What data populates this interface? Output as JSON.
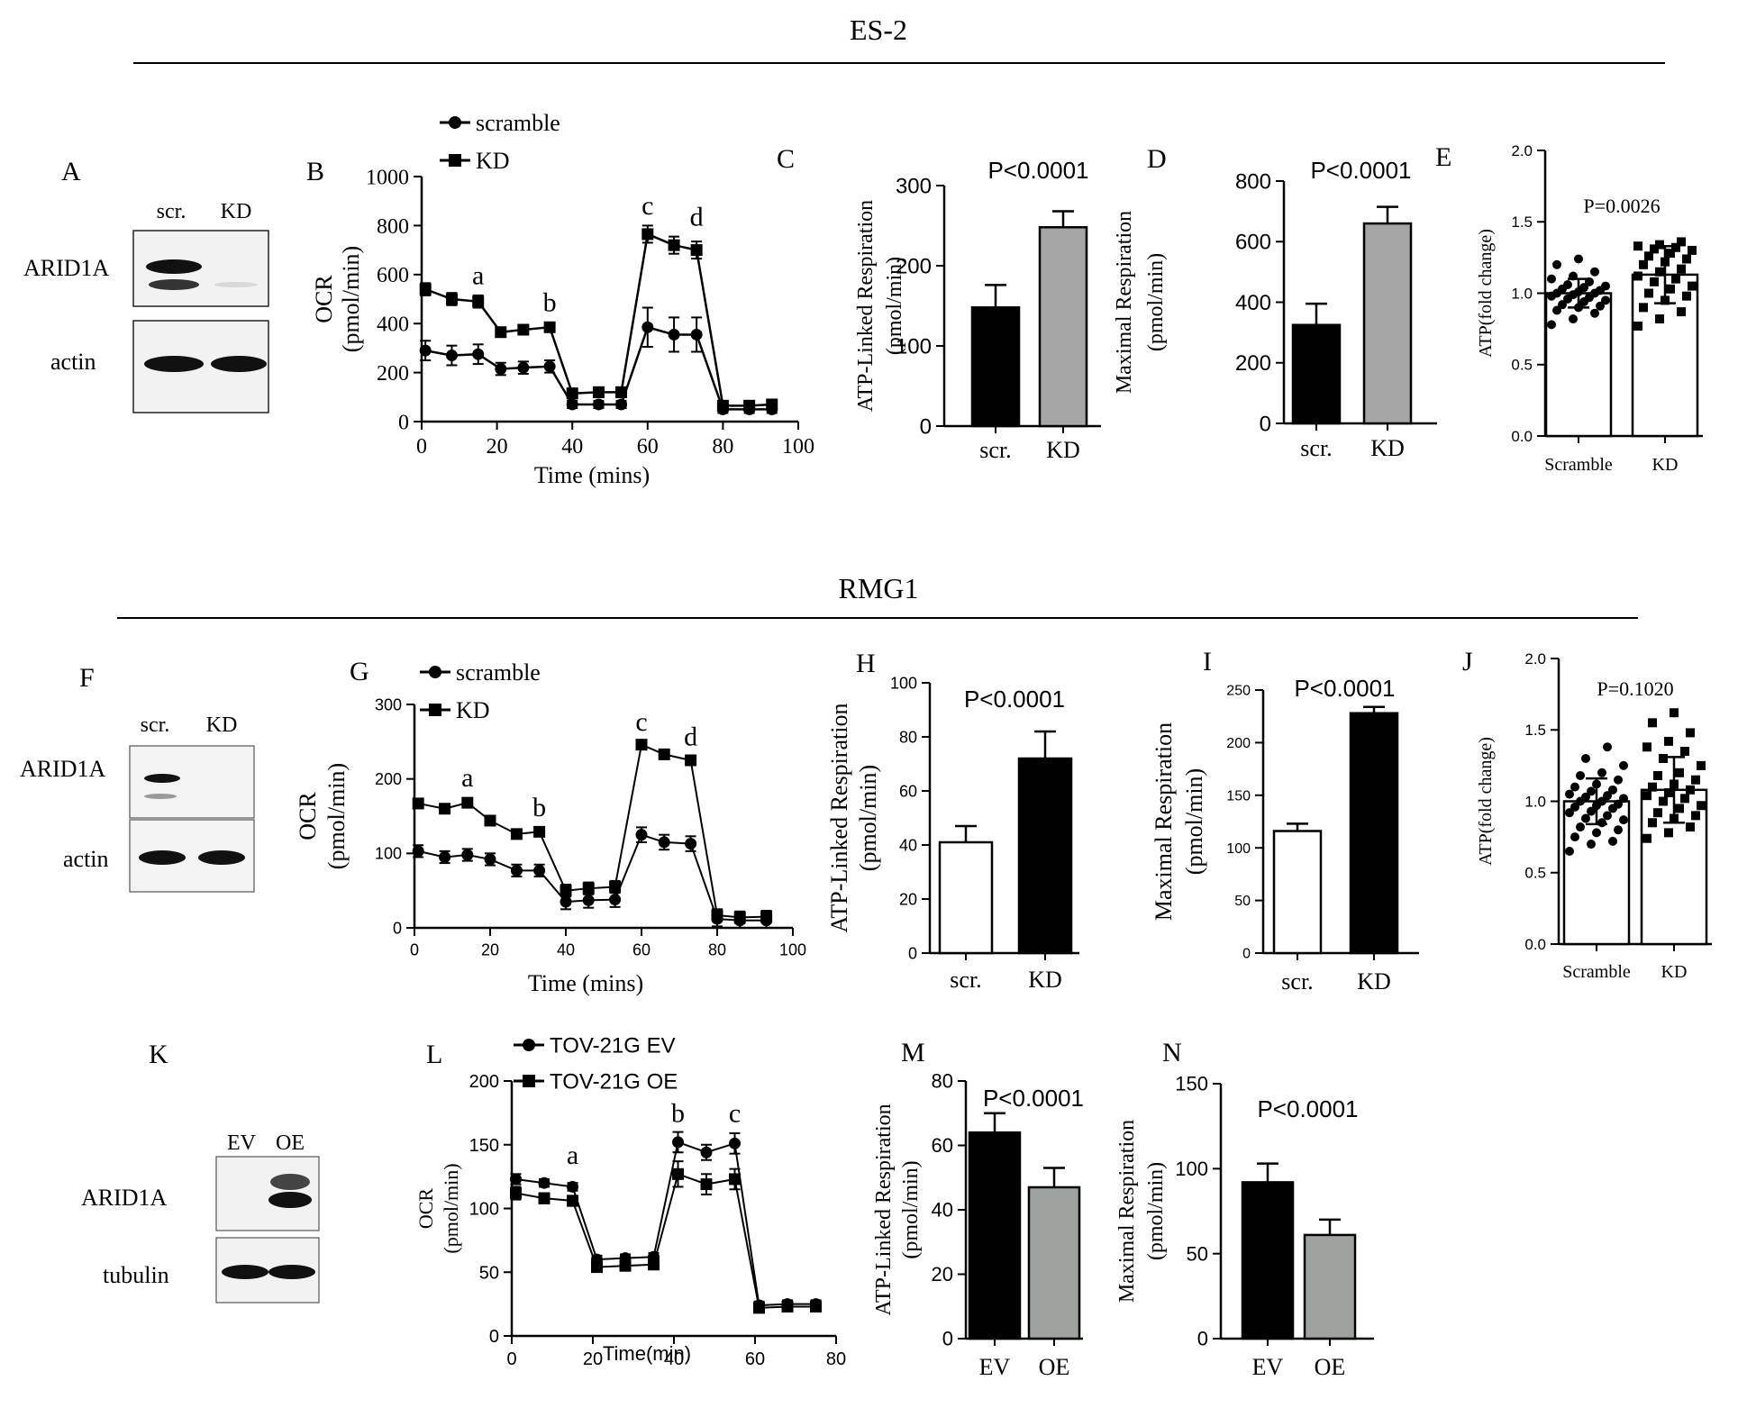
{
  "sections": {
    "es2": "ES-2",
    "rmg1": "RMG1"
  },
  "panel_letters": [
    "A",
    "B",
    "C",
    "D",
    "E",
    "F",
    "G",
    "H",
    "I",
    "J",
    "K",
    "L",
    "M",
    "N"
  ],
  "blots": {
    "A": {
      "lanes": [
        "scr.",
        "KD"
      ],
      "rows": [
        "ARID1A",
        "actin"
      ]
    },
    "F": {
      "lanes": [
        "scr.",
        "KD"
      ],
      "rows": [
        "ARID1A",
        "actin"
      ]
    },
    "K": {
      "lanes": [
        "EV",
        "OE"
      ],
      "rows": [
        "ARID1A",
        "tubulin"
      ]
    }
  },
  "colors": {
    "black": "#000000",
    "gray_bar": "#a6a6a6",
    "gray_bar2": "#9fa3a0",
    "white_bar": "#ffffff"
  },
  "chart_data": [
    {
      "id": "B",
      "type": "line",
      "title": "",
      "xlabel": "Time (mins)",
      "ylabel_line1": "OCR",
      "ylabel_line2": "(pmol/min)",
      "xlim": [
        0,
        100
      ],
      "ylim": [
        0,
        1000
      ],
      "xticks": [
        0,
        20,
        40,
        60,
        80,
        100
      ],
      "yticks": [
        0,
        200,
        400,
        600,
        800,
        1000
      ],
      "series": [
        {
          "name": "scramble",
          "marker": "circle",
          "x": [
            1,
            8,
            15,
            21,
            27,
            34,
            40,
            47,
            53,
            60,
            67,
            73,
            80,
            87,
            93
          ],
          "y": [
            290,
            270,
            275,
            215,
            220,
            225,
            70,
            70,
            70,
            385,
            355,
            355,
            50,
            50,
            50
          ],
          "err": [
            40,
            40,
            40,
            25,
            25,
            25,
            15,
            15,
            15,
            80,
            70,
            70,
            15,
            15,
            15
          ]
        },
        {
          "name": "KD",
          "marker": "square",
          "x": [
            1,
            8,
            15,
            21,
            27,
            34,
            40,
            47,
            53,
            60,
            67,
            73,
            80,
            87,
            93
          ],
          "y": [
            540,
            500,
            490,
            365,
            375,
            385,
            115,
            120,
            120,
            765,
            720,
            700,
            65,
            65,
            70
          ],
          "err": [
            25,
            25,
            25,
            15,
            15,
            15,
            20,
            20,
            20,
            35,
            35,
            35,
            15,
            15,
            15
          ]
        }
      ],
      "annotations": [
        {
          "text": "a",
          "x": 15,
          "y": 560
        },
        {
          "text": "b",
          "x": 34,
          "y": 450
        },
        {
          "text": "c",
          "x": 60,
          "y": 845
        },
        {
          "text": "d",
          "x": 73,
          "y": 800
        }
      ]
    },
    {
      "id": "C",
      "type": "bar",
      "ylabel_line1": "ATP-Linked Respiration",
      "ylabel_line2": "(pmol/min)",
      "pvalue": "P<0.0001",
      "categories": [
        "scr.",
        "KD"
      ],
      "values": [
        148,
        248
      ],
      "err": [
        28,
        20
      ],
      "fills": [
        "#000000",
        "#a6a6a6"
      ],
      "ylim": [
        0,
        300
      ],
      "yticks": [
        0,
        100,
        200,
        300
      ]
    },
    {
      "id": "D",
      "type": "bar",
      "ylabel_line1": "Maximal Respiration",
      "ylabel_line2": "(pmol/min)",
      "pvalue": "P<0.0001",
      "categories": [
        "scr.",
        "KD"
      ],
      "values": [
        325,
        660
      ],
      "err": [
        70,
        55
      ],
      "fills": [
        "#000000",
        "#a6a6a6"
      ],
      "ylim": [
        0,
        800
      ],
      "yticks": [
        0,
        200,
        400,
        600,
        800
      ]
    },
    {
      "id": "E",
      "type": "bar",
      "ylabel_line1": "ATP(fold change)",
      "pvalue": "P=0.0026",
      "categories": [
        "Scramble",
        "KD"
      ],
      "values": [
        1.0,
        1.13
      ],
      "err": [
        0.1,
        0.2
      ],
      "fills": [
        "#ffffff",
        "#ffffff"
      ],
      "ylim": [
        0,
        2.0
      ],
      "yticks": [
        "0.0",
        "0.5",
        "1.0",
        "1.5",
        "2.0"
      ],
      "points": [
        [
          0.78,
          0.82,
          0.86,
          0.88,
          0.9,
          0.91,
          0.92,
          0.94,
          0.95,
          0.96,
          0.97,
          0.98,
          0.99,
          1.0,
          1.0,
          1.01,
          1.02,
          1.03,
          1.04,
          1.05,
          1.06,
          1.08,
          1.1,
          1.12,
          1.15,
          1.2,
          1.24
        ],
        [
          0.77,
          0.82,
          0.87,
          0.9,
          0.95,
          0.98,
          1.0,
          1.03,
          1.05,
          1.08,
          1.1,
          1.12,
          1.15,
          1.17,
          1.2,
          1.22,
          1.24,
          1.26,
          1.28,
          1.3,
          1.31,
          1.32,
          1.33,
          1.34,
          1.36
        ]
      ]
    },
    {
      "id": "G",
      "type": "line",
      "xlabel": "Time (mins)",
      "ylabel_line1": "OCR",
      "ylabel_line2": "(pmol/min)",
      "xlim": [
        0,
        100
      ],
      "ylim": [
        0,
        300
      ],
      "xticks": [
        0,
        20,
        40,
        60,
        80,
        100
      ],
      "yticks": [
        0,
        100,
        200,
        300
      ],
      "series": [
        {
          "name": "scramble",
          "marker": "circle",
          "x": [
            1,
            8,
            14,
            20,
            27,
            33,
            40,
            46,
            53,
            60,
            66,
            73,
            80,
            86,
            93
          ],
          "y": [
            103,
            95,
            98,
            92,
            77,
            77,
            35,
            37,
            38,
            125,
            115,
            113,
            12,
            10,
            10
          ],
          "err": [
            8,
            8,
            8,
            8,
            8,
            8,
            10,
            10,
            10,
            10,
            10,
            10,
            10,
            10,
            10
          ]
        },
        {
          "name": "KD",
          "marker": "square",
          "x": [
            1,
            8,
            14,
            20,
            27,
            33,
            40,
            46,
            53,
            60,
            66,
            73,
            80,
            86,
            93
          ],
          "y": [
            167,
            160,
            168,
            144,
            126,
            129,
            50,
            53,
            55,
            246,
            233,
            225,
            17,
            14,
            15
          ],
          "err": [
            4,
            4,
            5,
            4,
            3,
            3,
            8,
            8,
            8,
            6,
            5,
            4,
            8,
            8,
            8
          ]
        }
      ],
      "annotations": [
        {
          "text": "a",
          "x": 14,
          "y": 190
        },
        {
          "text": "b",
          "x": 33,
          "y": 150
        },
        {
          "text": "c",
          "x": 60,
          "y": 265
        },
        {
          "text": "d",
          "x": 73,
          "y": 245
        }
      ]
    },
    {
      "id": "H",
      "type": "bar",
      "ylabel_line1": "ATP-Linked Respiration",
      "ylabel_line2": "(pmol/min)",
      "pvalue": "P<0.0001",
      "categories": [
        "scr.",
        "KD"
      ],
      "values": [
        41,
        72
      ],
      "err": [
        6,
        10
      ],
      "fills": [
        "#ffffff",
        "#000000"
      ],
      "ylim": [
        0,
        100
      ],
      "yticks": [
        0,
        20,
        40,
        60,
        80,
        100
      ]
    },
    {
      "id": "I",
      "type": "bar",
      "ylabel_line1": "Maximal Respiration",
      "ylabel_line2": "(pmol/min)",
      "pvalue": "P<0.0001",
      "categories": [
        "scr.",
        "KD"
      ],
      "values": [
        116,
        228
      ],
      "err": [
        7,
        6
      ],
      "fills": [
        "#ffffff",
        "#000000"
      ],
      "ylim": [
        0,
        250
      ],
      "yticks": [
        0,
        50,
        100,
        150,
        200,
        250
      ]
    },
    {
      "id": "J",
      "type": "bar",
      "ylabel_line1": "ATP(fold change)",
      "pvalue": "P=0.1020",
      "categories": [
        "Scramble",
        "KD"
      ],
      "values": [
        1.0,
        1.08
      ],
      "err": [
        0.16,
        0.23
      ],
      "fills": [
        "#ffffff",
        "#ffffff"
      ],
      "ylim": [
        0,
        2.0
      ],
      "yticks": [
        "0.0",
        "0.5",
        "1.0",
        "1.5",
        "2.0"
      ],
      "points": [
        [
          0.65,
          0.7,
          0.72,
          0.75,
          0.78,
          0.8,
          0.82,
          0.85,
          0.87,
          0.88,
          0.9,
          0.92,
          0.93,
          0.95,
          0.96,
          0.97,
          0.98,
          1.0,
          1.0,
          1.02,
          1.03,
          1.04,
          1.05,
          1.07,
          1.08,
          1.1,
          1.12,
          1.15,
          1.18,
          1.2,
          1.25,
          1.3,
          1.38
        ],
        [
          0.74,
          0.78,
          0.82,
          0.85,
          0.88,
          0.9,
          0.92,
          0.95,
          0.97,
          1.0,
          1.02,
          1.04,
          1.06,
          1.08,
          1.1,
          1.12,
          1.15,
          1.18,
          1.2,
          1.25,
          1.3,
          1.35,
          1.38,
          1.42,
          1.48,
          1.55,
          1.62
        ]
      ]
    },
    {
      "id": "L",
      "type": "line",
      "xlabel": "Time(min)",
      "ylabel_line1": "OCR",
      "ylabel_line2": "(pmol/min)",
      "xlim": [
        0,
        80
      ],
      "ylim": [
        0,
        200
      ],
      "xticks": [
        0,
        20,
        40,
        60,
        80
      ],
      "yticks": [
        0,
        50,
        100,
        150,
        200
      ],
      "series": [
        {
          "name": "TOV-21G EV",
          "marker": "circle",
          "x": [
            1,
            8,
            15,
            21,
            28,
            35,
            41,
            48,
            55,
            61,
            68,
            75
          ],
          "y": [
            123,
            120,
            117,
            60,
            61,
            62,
            152,
            144,
            151,
            24,
            25,
            25
          ],
          "err": [
            4,
            3,
            3,
            3,
            3,
            3,
            8,
            6,
            8,
            3,
            3,
            3
          ]
        },
        {
          "name": "TOV-21G OE",
          "marker": "square",
          "x": [
            1,
            8,
            15,
            21,
            28,
            35,
            41,
            48,
            55,
            61,
            68,
            75
          ],
          "y": [
            112,
            108,
            106,
            54,
            55,
            56,
            127,
            119,
            123,
            22,
            23,
            23
          ],
          "err": [
            5,
            4,
            4,
            3,
            3,
            3,
            10,
            8,
            8,
            3,
            3,
            3
          ]
        }
      ],
      "annotations": [
        {
          "text": "a",
          "x": 15,
          "y": 135
        },
        {
          "text": "b",
          "x": 41,
          "y": 168
        },
        {
          "text": "c",
          "x": 55,
          "y": 168
        }
      ]
    },
    {
      "id": "M",
      "type": "bar",
      "ylabel_line1": "ATP-Linked Respiration",
      "ylabel_line2": "(pmol/min)",
      "pvalue": "P<0.0001",
      "categories": [
        "EV",
        "OE"
      ],
      "values": [
        64,
        47
      ],
      "err": [
        6,
        6
      ],
      "fills": [
        "#000000",
        "#9fa3a0"
      ],
      "ylim": [
        0,
        80
      ],
      "yticks": [
        0,
        20,
        40,
        60,
        80
      ]
    },
    {
      "id": "N",
      "type": "bar",
      "ylabel_line1": "Maximal Respiration",
      "ylabel_line2": "(pmol/min)",
      "pvalue": "P<0.0001",
      "categories": [
        "EV",
        "OE"
      ],
      "values": [
        92,
        61
      ],
      "err": [
        11,
        9
      ],
      "fills": [
        "#000000",
        "#9fa3a0"
      ],
      "ylim": [
        0,
        150
      ],
      "yticks": [
        0,
        50,
        100,
        150
      ]
    }
  ]
}
